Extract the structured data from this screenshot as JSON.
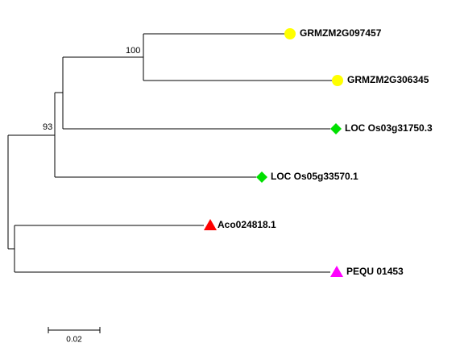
{
  "tree": {
    "leaves": [
      {
        "label": "GRMZM2G097457"
      },
      {
        "label": "GRMZM2G306345"
      },
      {
        "label": "LOC Os03g31750.3"
      },
      {
        "label": "LOC Os05g33570.1"
      },
      {
        "label": "Aco024818.1"
      },
      {
        "label": "PEQU 01453"
      }
    ],
    "bootstraps": [
      100,
      93
    ],
    "scale_bar": {
      "label": "0.02"
    }
  }
}
